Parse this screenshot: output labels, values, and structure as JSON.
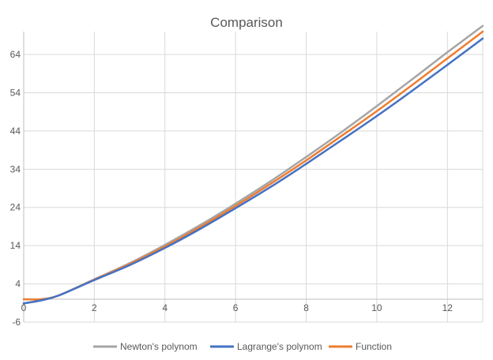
{
  "chart_data": {
    "type": "line",
    "title": "Comparison",
    "xlabel": "",
    "ylabel": "",
    "xlim": [
      0,
      13
    ],
    "ylim": [
      -6,
      70
    ],
    "x_ticks": [
      0,
      2,
      4,
      6,
      8,
      10,
      12
    ],
    "y_ticks": [
      -6,
      4,
      14,
      24,
      34,
      44,
      54,
      64
    ],
    "grid": true,
    "legend_position": "bottom",
    "series": [
      {
        "name": "Newton's polynom",
        "color": "#a5a5a5",
        "x": [
          0,
          0.5,
          1,
          2,
          3,
          4,
          5,
          6,
          7,
          8,
          9,
          10,
          11,
          12,
          13
        ],
        "y": [
          -1.1,
          -0.3,
          1.0,
          5.2,
          9.4,
          14.2,
          19.4,
          25.0,
          30.9,
          37.2,
          43.7,
          50.5,
          57.5,
          64.6,
          71.5
        ]
      },
      {
        "name": "Lagrange's polynom",
        "color": "#4472c4",
        "x": [
          0,
          0.5,
          1,
          2,
          3,
          4,
          5,
          6,
          7,
          8,
          9,
          10,
          11,
          12,
          13
        ],
        "y": [
          -1.1,
          -0.3,
          1.0,
          5.0,
          8.9,
          13.4,
          18.4,
          23.8,
          29.4,
          35.4,
          41.6,
          47.9,
          54.5,
          61.3,
          68.2
        ]
      },
      {
        "name": "Function",
        "color": "#ed7d31",
        "x": [
          0,
          0.5,
          1,
          2,
          3,
          4,
          5,
          6,
          7,
          8,
          9,
          10,
          11,
          12,
          13
        ],
        "y": [
          0.0,
          0.0,
          1.0,
          5.1,
          9.2,
          13.8,
          18.9,
          24.4,
          30.2,
          36.3,
          42.7,
          49.2,
          56.0,
          63.0,
          70.0
        ]
      }
    ]
  }
}
